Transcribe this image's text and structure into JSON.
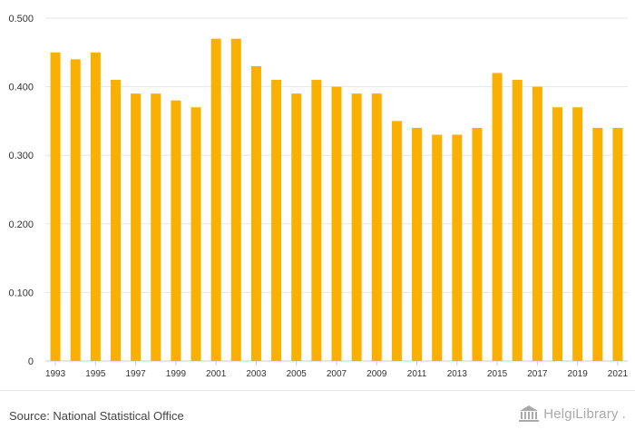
{
  "chart_data": {
    "type": "bar",
    "title": "",
    "xlabel": "",
    "ylabel": "",
    "categories": [
      "1993",
      "1994",
      "1995",
      "1996",
      "1997",
      "1998",
      "1999",
      "2000",
      "2001",
      "2002",
      "2003",
      "2004",
      "2005",
      "2006",
      "2007",
      "2008",
      "2009",
      "2010",
      "2011",
      "2012",
      "2013",
      "2014",
      "2015",
      "2016",
      "2017",
      "2018",
      "2019",
      "2020",
      "2021"
    ],
    "values": [
      0.45,
      0.44,
      0.45,
      0.41,
      0.39,
      0.39,
      0.38,
      0.37,
      0.47,
      0.47,
      0.43,
      0.41,
      0.39,
      0.41,
      0.4,
      0.39,
      0.39,
      0.35,
      0.34,
      0.33,
      0.33,
      0.34,
      0.42,
      0.41,
      0.4,
      0.37,
      0.37,
      0.34,
      0.34
    ],
    "x_tick_labels": [
      "1993",
      "1995",
      "1997",
      "1999",
      "2001",
      "2003",
      "2005",
      "2007",
      "2009",
      "2011",
      "2013",
      "2015",
      "2017",
      "2019",
      "2021"
    ],
    "y_ticks": [
      0,
      0.1,
      0.2,
      0.3,
      0.4,
      0.5
    ],
    "y_tick_labels": [
      "0",
      "0.100",
      "0.200",
      "0.300",
      "0.400",
      "0.500"
    ],
    "ylim": [
      0,
      0.5
    ],
    "grid": true,
    "legend": "none",
    "bar_color": "#f9b000"
  },
  "footer": {
    "source": "Source: National Statistical Office",
    "brand_name": "HelgiLibrary",
    "brand_suffix": "."
  },
  "colors": {
    "grid": "#e6e6e6",
    "axis_text": "#333333",
    "brand": "#a9a9a9"
  }
}
